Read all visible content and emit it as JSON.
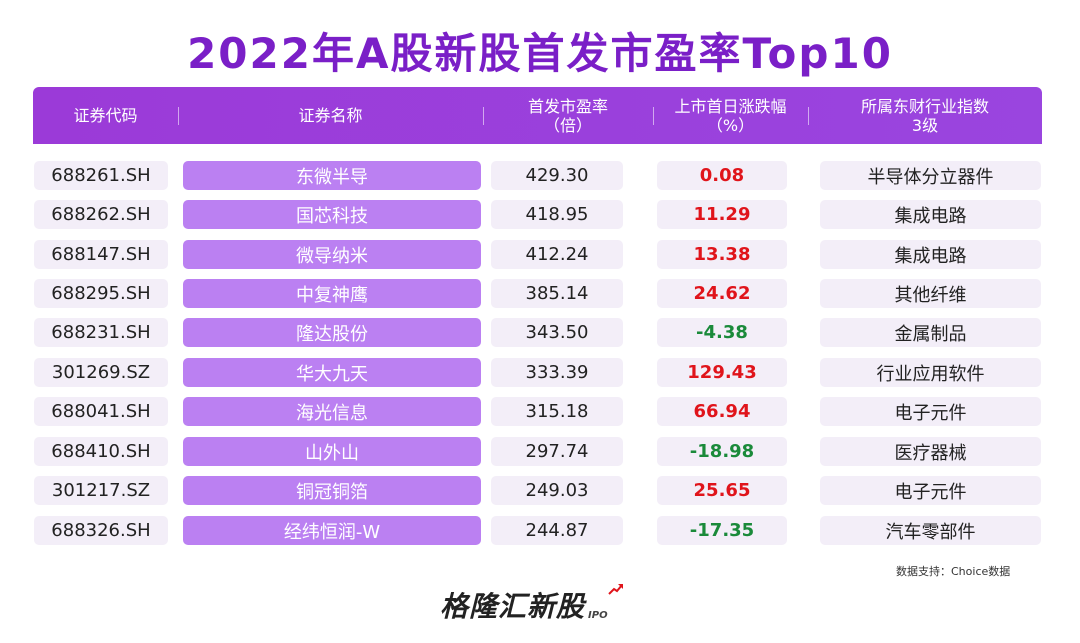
{
  "title": "2022年A股新股首发市盈率Top10",
  "header": {
    "code": "证券代码",
    "name": "证券名称",
    "pe_line1": "首发市盈率",
    "pe_line2": "（倍）",
    "chg_line1": "上市首日涨跌幅",
    "chg_line2": "（%）",
    "ind_line1": "所属东财行业指数",
    "ind_line2": "3级"
  },
  "rows": [
    {
      "code": "688261.SH",
      "name": "东微半导",
      "pe": "429.30",
      "chg": "0.08",
      "dir": "up",
      "industry": "半导体分立器件"
    },
    {
      "code": "688262.SH",
      "name": "国芯科技",
      "pe": "418.95",
      "chg": "11.29",
      "dir": "up",
      "industry": "集成电路"
    },
    {
      "code": "688147.SH",
      "name": "微导纳米",
      "pe": "412.24",
      "chg": "13.38",
      "dir": "up",
      "industry": "集成电路"
    },
    {
      "code": "688295.SH",
      "name": "中复神鹰",
      "pe": "385.14",
      "chg": "24.62",
      "dir": "up",
      "industry": "其他纤维"
    },
    {
      "code": "688231.SH",
      "name": "隆达股份",
      "pe": "343.50",
      "chg": "-4.38",
      "dir": "down",
      "industry": "金属制品"
    },
    {
      "code": "301269.SZ",
      "name": "华大九天",
      "pe": "333.39",
      "chg": "129.43",
      "dir": "up",
      "industry": "行业应用软件"
    },
    {
      "code": "688041.SH",
      "name": "海光信息",
      "pe": "315.18",
      "chg": "66.94",
      "dir": "up",
      "industry": "电子元件"
    },
    {
      "code": "688410.SH",
      "name": "山外山",
      "pe": "297.74",
      "chg": "-18.98",
      "dir": "down",
      "industry": "医疗器械"
    },
    {
      "code": "301217.SZ",
      "name": "铜冠铜箔",
      "pe": "249.03",
      "chg": "25.65",
      "dir": "up",
      "industry": "电子元件"
    },
    {
      "code": "688326.SH",
      "name": "经纬恒润-W",
      "pe": "244.87",
      "chg": "-17.35",
      "dir": "down",
      "industry": "汽车零部件"
    }
  ],
  "source": "数据支持：Choice数据",
  "logo": {
    "text": "格隆汇新股",
    "suffix": "IPO"
  },
  "colors": {
    "accent": "#7a1fc7",
    "header_bg": "#9b3ad8",
    "name_cell": "#bb80f2",
    "cell_bg": "#f3eef8",
    "up": "#e0141b",
    "down": "#1a8a3a"
  }
}
